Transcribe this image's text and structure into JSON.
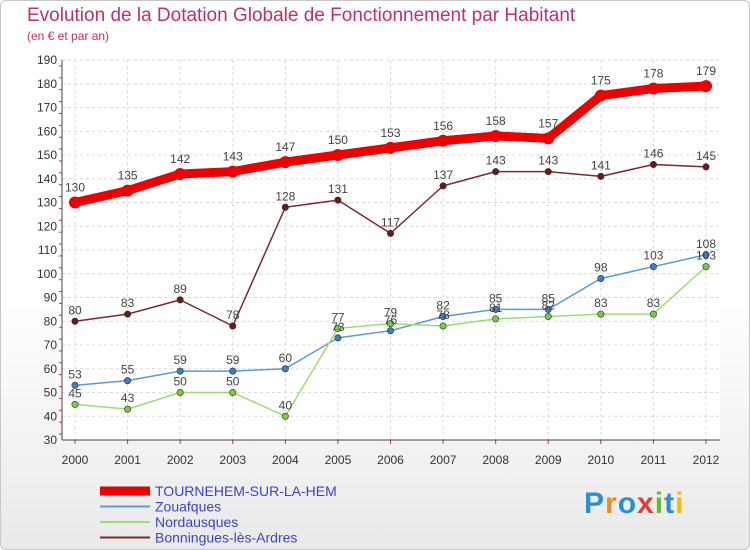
{
  "title": "Evolution de la Dotation Globale de Fonctionnement par Habitant",
  "subtitle": "(en € et par an)",
  "logo": {
    "text": "Proxiti",
    "colors": [
      "#2a8fd6",
      "#f28a1d",
      "#2a8fd6",
      "#e23b3b",
      "#6ab82e",
      "#2a8fd6",
      "#f5b800"
    ]
  },
  "chart_data": {
    "type": "line",
    "title": "Evolution de la Dotation Globale de Fonctionnement par Habitant",
    "subtitle": "(en € et par an)",
    "xlabel": "",
    "ylabel": "",
    "x": [
      "2000",
      "2001",
      "2002",
      "2003",
      "2004",
      "2005",
      "2006",
      "2007",
      "2008",
      "2009",
      "2010",
      "2011",
      "2012"
    ],
    "ylim": [
      30,
      190
    ],
    "yticks": [
      30,
      40,
      50,
      60,
      70,
      80,
      90,
      100,
      110,
      120,
      130,
      140,
      150,
      160,
      170,
      180,
      190
    ],
    "grid": true,
    "legend": "bottom-left",
    "series": [
      {
        "name": "TOURNEHEM-SUR-LA-HEM",
        "color": "#ee0000",
        "highlight": true,
        "values": [
          130,
          135,
          142,
          143,
          147,
          150,
          153,
          156,
          158,
          157,
          175,
          178,
          179
        ],
        "labels": [
          "130",
          "135",
          "142",
          "143",
          "147",
          "150",
          "153",
          "156",
          "158",
          "157",
          "175",
          "178",
          "179"
        ]
      },
      {
        "name": "Zouafques",
        "color": "#5b9bd5",
        "point_color": "#3b7fc4",
        "values": [
          53,
          55,
          59,
          59,
          60,
          73,
          76,
          82,
          85,
          85,
          98,
          103,
          108
        ],
        "labels": [
          "53",
          "55",
          "59",
          "59",
          "60",
          "73",
          "76",
          "82",
          "85",
          "85",
          "98",
          "103",
          "108"
        ]
      },
      {
        "name": "Nordausques",
        "color": "#99dd77",
        "point_color": "#77cc44",
        "values": [
          45,
          43,
          50,
          50,
          40,
          77,
          79,
          78,
          81,
          82,
          83,
          83,
          103
        ],
        "labels": [
          "45",
          "43",
          "50",
          "50",
          "40",
          "77",
          "79",
          "78",
          "81",
          "82",
          "83",
          "83",
          "103"
        ]
      },
      {
        "name": "Bonningues-lès-Ardres",
        "color": "#7a2a2a",
        "point_color": "#6b1a1a",
        "values": [
          80,
          83,
          89,
          78,
          128,
          131,
          117,
          137,
          143,
          143,
          141,
          146,
          145
        ],
        "labels": [
          "80",
          "83",
          "89",
          "78",
          "128",
          "131",
          "117",
          "137",
          "143",
          "143",
          "141",
          "146",
          "145"
        ]
      }
    ]
  }
}
